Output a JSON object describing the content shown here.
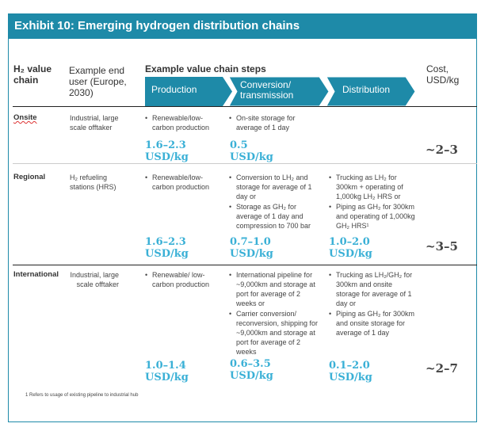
{
  "title": "Exhibit 10: Emerging hydrogen distribution chains",
  "header": {
    "col_chain": "H₂ value chain",
    "col_user": "Example end user (Europe, 2030)",
    "col_steps": "Example value chain steps",
    "steps": [
      "Production",
      "Conversion/ transmission",
      "Distribution"
    ],
    "col_cost": "Cost, USD/kg"
  },
  "accent_color": "#1e8aa8",
  "cost_color": "#3ab0d6",
  "rows": [
    {
      "chain": "Onsite",
      "user": "Industrial, large scale offtaker",
      "production": [
        "Renewable/low-carbon production"
      ],
      "conversion": [
        "On-site storage for average of 1 day"
      ],
      "distribution": [],
      "production_cost": "1.6–2.3 USD/kg",
      "conversion_cost": "0.5 USD/kg",
      "distribution_cost": "",
      "total": "~2–3"
    },
    {
      "chain": "Regional",
      "user": "H₂ refueling stations (HRS)",
      "production": [
        "Renewable/low-carbon production"
      ],
      "conversion": [
        "Conversion to LH₂ and storage for average of 1 day or",
        "Storage as GH₂ for average of 1 day and compression to 700 bar"
      ],
      "distribution": [
        "Trucking as LH₂ for 300km + operating of 1,000kg LH₂ HRS or",
        "Piping as GH₂ for 300km and operating of 1,000kg GH₂ HRS¹"
      ],
      "production_cost": "1.6–2.3 USD/kg",
      "conversion_cost": "0.7–1.0 USD/kg",
      "distribution_cost": "1.0–2.0 USD/kg",
      "total": "~3–5"
    },
    {
      "chain": "International",
      "user": "Industrial, large scale offtaker",
      "production": [
        "Renewable/ low-carbon production"
      ],
      "conversion": [
        "International pipeline for ~9,000km and storage at port for average of 2 weeks or",
        "Carrier conversion/ reconversion, shipping for ~9,000km and storage at port for average of 2 weeks"
      ],
      "distribution": [
        "Trucking as LH₂/GH₂ for 300km and onsite storage for average of 1 day or",
        "Piping as GH₂ for 300km and onsite storage for average of 1 day"
      ],
      "production_cost": "1.0–1.4 USD/kg",
      "conversion_cost": "0.6–3.5 USD/kg",
      "distribution_cost": "0.1–2.0 USD/kg",
      "total": "~2–7"
    }
  ],
  "footnote": "1 Refers to usage of existing pipeline to industrial hub"
}
